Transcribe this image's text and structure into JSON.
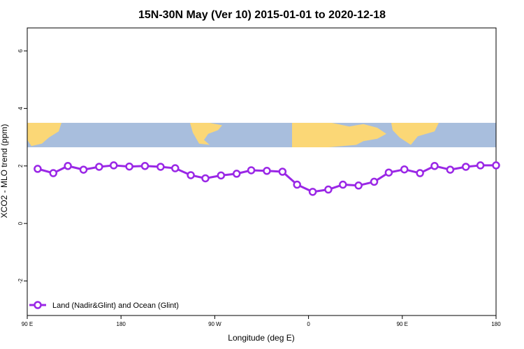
{
  "chart_data": {
    "type": "line",
    "title": "15N-30N May (Ver 10)   2015-01-01 to 2020-12-18",
    "xlabel": "Longitude (deg E)",
    "ylabel": "XCO2 - MLO trend (ppm)",
    "x_tick_labels": [
      "90 E",
      "180",
      "90 W",
      "0",
      "90 E",
      "180"
    ],
    "x_tick_values": [
      90,
      180,
      270,
      360,
      450,
      540
    ],
    "xlim": [
      90,
      540
    ],
    "y_ticks": [
      -2,
      0,
      2,
      4,
      6
    ],
    "ylim": [
      -3.2,
      6.8
    ],
    "grid": false,
    "legend_position": "bottom-left",
    "colors": {
      "series": "#9a27e6",
      "ocean": "#a8bedd",
      "land": "#fbd776"
    },
    "map_band": {
      "y_range": [
        2.65,
        3.5
      ],
      "description_icon": "world-map-band"
    },
    "series": [
      {
        "name": "Land (Nadir&Glint) and Ocean (Glint)",
        "x": [
          100,
          115,
          129,
          144,
          159,
          173,
          188,
          203,
          218,
          232,
          247,
          261,
          276,
          291,
          305,
          320,
          335,
          349,
          364,
          379,
          393,
          408,
          423,
          437,
          452,
          467,
          481,
          496,
          511,
          525,
          540
        ],
        "y": [
          1.9,
          1.75,
          2.0,
          1.87,
          1.97,
          2.02,
          1.98,
          2.0,
          1.97,
          1.92,
          1.68,
          1.57,
          1.67,
          1.73,
          1.85,
          1.83,
          1.8,
          1.35,
          1.1,
          1.18,
          1.35,
          1.32,
          1.45,
          1.77,
          1.88,
          1.75,
          2.0,
          1.87,
          1.97,
          2.02,
          2.02
        ]
      }
    ]
  }
}
